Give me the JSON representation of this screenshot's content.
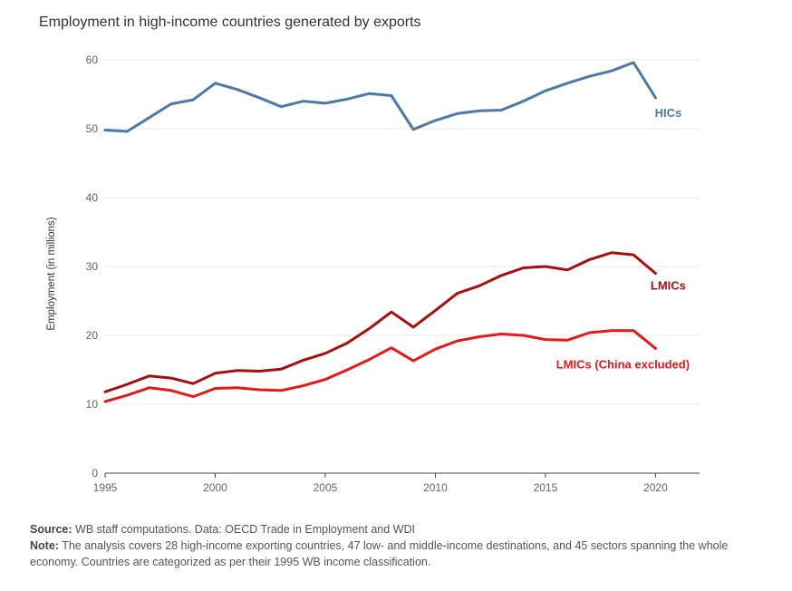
{
  "title": "Employment in high-income countries generated by exports",
  "footer": {
    "source_label": "Source:",
    "source_text": "WB staff computations. Data: OECD Trade in Employment and WDI",
    "note_label": "Note:",
    "note_text": "The analysis covers 28 high-income exporting countries, 47 low- and middle-income destinations, and 45 sectors spanning the whole economy. Countries are categorized as per their 1995 WB income classification."
  },
  "chart_data": {
    "type": "line",
    "title": "Employment in high-income countries generated by exports",
    "xlabel": "",
    "ylabel": "Employment (in millions)",
    "xlim": [
      1995,
      2022
    ],
    "ylim": [
      0,
      60
    ],
    "x_ticks": [
      1995,
      2000,
      2005,
      2010,
      2015,
      2020
    ],
    "y_ticks": [
      0,
      10,
      20,
      30,
      40,
      50,
      60
    ],
    "grid": "horizontal",
    "legend": "inline labels at line ends",
    "x": [
      1995,
      1996,
      1997,
      1998,
      1999,
      2000,
      2001,
      2002,
      2003,
      2004,
      2005,
      2006,
      2007,
      2008,
      2009,
      2010,
      2011,
      2012,
      2013,
      2014,
      2015,
      2016,
      2017,
      2018,
      2019,
      2020
    ],
    "series": [
      {
        "name": "HICs",
        "color": "#4e79a7",
        "values": [
          49.8,
          49.6,
          51.6,
          53.6,
          54.2,
          56.6,
          55.7,
          54.5,
          53.2,
          54.0,
          53.7,
          54.3,
          55.1,
          54.8,
          49.9,
          51.2,
          52.2,
          52.6,
          52.7,
          54.0,
          55.5,
          56.6,
          57.6,
          58.4,
          59.6,
          54.5
        ]
      },
      {
        "name": "LMICs",
        "color": "#a50f0f",
        "values": [
          11.8,
          12.9,
          14.1,
          13.8,
          13.0,
          14.5,
          14.9,
          14.8,
          15.1,
          16.4,
          17.4,
          18.9,
          21.0,
          23.4,
          21.2,
          23.6,
          26.1,
          27.2,
          28.7,
          29.8,
          30.0,
          29.5,
          31.0,
          32.0,
          31.7,
          29.0
        ]
      },
      {
        "name": "LMICs (China excluded)",
        "color": "#e31a1c",
        "values": [
          10.4,
          11.3,
          12.4,
          12.0,
          11.1,
          12.3,
          12.4,
          12.1,
          12.0,
          12.7,
          13.6,
          15.0,
          16.5,
          18.2,
          16.3,
          18.0,
          19.2,
          19.8,
          20.2,
          20.0,
          19.4,
          19.3,
          20.4,
          20.7,
          20.7,
          18.1
        ]
      }
    ]
  }
}
